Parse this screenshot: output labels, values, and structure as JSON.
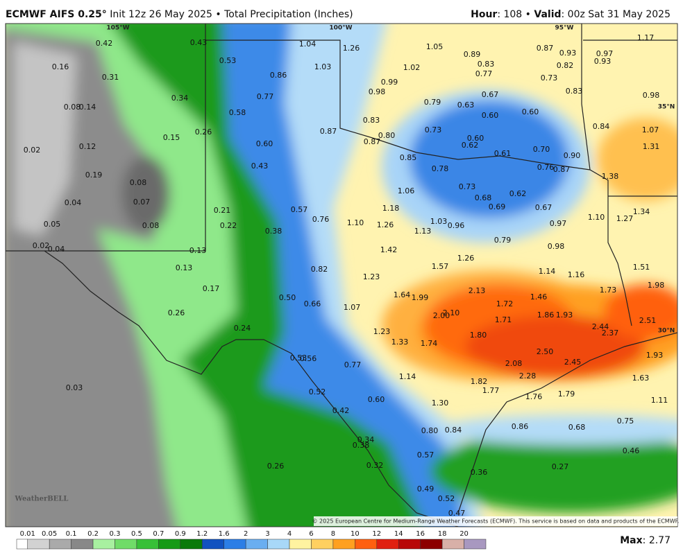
{
  "header": {
    "model": "ECMWF AIFS 0.25°",
    "subtitle": "Init 12z 26 May 2025 • Total Precipitation (Inches)",
    "hour_label": "Hour",
    "hour_value": ": 108 • ",
    "valid_label": "Valid",
    "valid_value": ": 00z Sat 31 May 2025"
  },
  "grid_labels": [
    "105°W",
    "100°W",
    "95°W",
    "35°N",
    "30°N"
  ],
  "points": [
    "0.42",
    "0.43",
    "0.16",
    "0.31",
    "0.34",
    "0.53",
    "0.86",
    "0.77",
    "0.08",
    "0.14",
    "0.58",
    "0.26",
    "0.15",
    "0.02",
    "0.12",
    "0.60",
    "0.43",
    "0.19",
    "0.08",
    "0.04",
    "0.07",
    "0.21",
    "0.57",
    "0.05",
    "0.08",
    "0.22",
    "0.38",
    "0.76",
    "0.02",
    "0.04",
    "0.13",
    "0.13",
    "0.82",
    "0.17",
    "0.50",
    "0.66",
    "0.26",
    "0.24",
    "0.53",
    "0.56",
    "0.77",
    "0.03",
    "0.52",
    "0.60",
    "0.42",
    "0.34",
    "0.38",
    "0.26",
    "0.32",
    "0.57",
    "0.49",
    "0.52",
    "0.47",
    "1.04",
    "1.26",
    "1.03",
    "1.05",
    "0.89",
    "0.83",
    "0.77",
    "1.02",
    "0.87",
    "0.93",
    "0.97",
    "0.93",
    "0.82",
    "0.73",
    "1.17",
    "0.99",
    "0.98",
    "0.67",
    "0.83",
    "0.98",
    "0.79",
    "0.63",
    "0.60",
    "0.60",
    "0.83",
    "0.87",
    "0.73",
    "0.84",
    "1.07",
    "0.80",
    "0.60",
    "0.62",
    "0.87",
    "0.61",
    "0.70",
    "0.90",
    "1.31",
    "0.85",
    "0.78",
    "0.76",
    "0.87",
    "1.38",
    "0.73",
    "1.06",
    "0.62",
    "0.68",
    "0.69",
    "0.67",
    "1.34",
    "1.18",
    "1.10",
    "1.26",
    "1.03",
    "0.96",
    "1.13",
    "0.97",
    "1.10",
    "1.27",
    "0.79",
    "0.98",
    "1.42",
    "1.26",
    "1.57",
    "1.14",
    "1.16",
    "1.51",
    "1.23",
    "1.73",
    "1.98",
    "1.64",
    "1.99",
    "2.13",
    "1.46",
    "1.72",
    "1.07",
    "2.00",
    "2.10",
    "1.86",
    "1.93",
    "1.71",
    "2.44",
    "2.51",
    "2.37",
    "1.23",
    "1.80",
    "1.33",
    "1.74",
    "2.50",
    "2.08",
    "2.45",
    "1.93",
    "1.14",
    "2.28",
    "1.63",
    "1.82",
    "1.77",
    "1.76",
    "1.79",
    "1.11",
    "1.30",
    "0.75",
    "0.80",
    "0.84",
    "0.86",
    "0.68",
    "0.46",
    "0.36",
    "0.27"
  ],
  "colorbar_labels": [
    "0.01",
    "0.05",
    "0.1",
    "0.2",
    "0.3",
    "0.5",
    "0.7",
    "0.9",
    "1.2",
    "1.6",
    "2",
    "3",
    "4",
    "6",
    "8",
    "10",
    "12",
    "14",
    "16",
    "18",
    "20"
  ],
  "max_label": "Max",
  "max_value": ": 2.77",
  "copyright": "© 2025 European Centre for Medium-Range Weather Forecasts (ECMWF). This service is based on data and products of the ECMWF.",
  "logo": "WeatherBELL"
}
